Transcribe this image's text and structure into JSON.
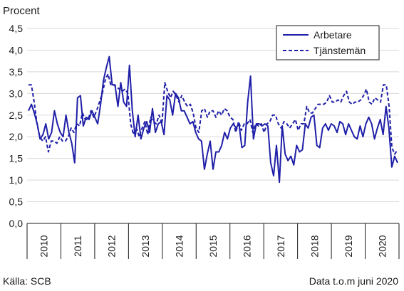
{
  "chart_data": {
    "type": "line",
    "title": "",
    "ylabel": "Procent",
    "xlabel": "",
    "ylim": [
      0,
      4.5
    ],
    "yticks": [
      "0,0",
      "0,5",
      "1,0",
      "1,5",
      "2,0",
      "2,5",
      "3,0",
      "3,5",
      "4,0",
      "4,5"
    ],
    "years": [
      "2010",
      "2011",
      "2012",
      "2013",
      "2014",
      "2015",
      "2016",
      "2017",
      "2018",
      "2019",
      "2020"
    ],
    "x_start": "2010-01",
    "x_end": "2020-06",
    "grid": "horizontal",
    "legend_position": "top-right",
    "series": [
      {
        "name": "Arbetare",
        "style": "solid",
        "color": "#1f1fa8",
        "values": [
          2.6,
          2.75,
          2.55,
          2.3,
          1.95,
          2.05,
          2.3,
          1.95,
          2.1,
          2.6,
          2.3,
          2.1,
          2.0,
          2.5,
          2.1,
          1.85,
          1.4,
          2.9,
          2.95,
          2.25,
          2.45,
          2.4,
          2.6,
          2.45,
          2.3,
          2.75,
          3.3,
          3.6,
          3.85,
          3.2,
          3.2,
          2.7,
          3.25,
          2.8,
          2.7,
          3.65,
          2.6,
          2.0,
          2.5,
          1.95,
          2.2,
          2.35,
          2.1,
          2.65,
          2.1,
          2.3,
          2.35,
          2.05,
          2.95,
          2.85,
          2.5,
          3.0,
          2.9,
          2.6,
          2.6,
          2.45,
          2.3,
          2.35,
          2.1,
          1.95,
          1.9,
          1.25,
          1.6,
          1.9,
          1.25,
          1.65,
          1.65,
          1.8,
          2.1,
          1.95,
          2.2,
          2.3,
          2.2,
          2.3,
          1.75,
          1.8,
          2.8,
          3.4,
          1.95,
          2.3,
          2.3,
          2.25,
          2.3,
          2.25,
          1.4,
          1.1,
          1.8,
          0.95,
          2.25,
          1.6,
          1.45,
          1.55,
          1.35,
          1.8,
          1.65,
          1.7,
          2.3,
          2.2,
          2.45,
          2.5,
          1.8,
          1.75,
          2.2,
          2.3,
          2.15,
          2.3,
          2.25,
          2.1,
          2.35,
          2.3,
          2.05,
          2.3,
          2.15,
          2.0,
          1.95,
          2.25,
          2.0,
          2.3,
          2.45,
          2.3,
          1.95,
          2.2,
          2.4,
          2.05,
          2.7,
          2.2,
          1.3,
          1.55,
          1.4
        ]
      },
      {
        "name": "Tjänstemän",
        "style": "dashed",
        "color": "#1f1fa8",
        "values": [
          3.2,
          3.2,
          2.8,
          2.3,
          2.0,
          1.9,
          2.0,
          1.65,
          1.9,
          1.9,
          1.85,
          2.0,
          1.9,
          1.9,
          2.0,
          2.2,
          2.1,
          2.3,
          2.25,
          2.55,
          2.4,
          2.4,
          2.6,
          2.45,
          2.6,
          2.8,
          3.0,
          3.3,
          3.45,
          3.2,
          3.2,
          3.15,
          3.1,
          3.05,
          3.1,
          3.0,
          2.3,
          2.05,
          2.2,
          2.0,
          2.2,
          2.35,
          2.05,
          2.45,
          2.35,
          2.3,
          2.5,
          2.3,
          3.25,
          3.05,
          2.9,
          3.05,
          2.95,
          2.8,
          2.95,
          2.8,
          2.7,
          2.75,
          2.55,
          2.2,
          2.1,
          2.6,
          2.65,
          2.45,
          2.6,
          2.6,
          2.45,
          2.6,
          2.5,
          2.65,
          2.6,
          2.45,
          2.4,
          2.1,
          2.35,
          2.15,
          2.3,
          2.3,
          2.4,
          2.1,
          2.3,
          2.25,
          2.3,
          2.1,
          2.3,
          2.35,
          2.5,
          2.5,
          2.3,
          2.2,
          2.35,
          2.3,
          2.2,
          2.3,
          2.4,
          2.15,
          2.3,
          2.3,
          2.7,
          2.55,
          2.55,
          2.65,
          2.75,
          2.75,
          2.75,
          2.8,
          2.95,
          2.8,
          2.8,
          2.85,
          2.8,
          2.95,
          3.05,
          2.8,
          2.75,
          2.8,
          2.8,
          2.85,
          2.95,
          3.1,
          2.8,
          2.75,
          2.9,
          2.85,
          2.8,
          3.2,
          3.2,
          2.7,
          1.75,
          1.6,
          1.7
        ]
      }
    ]
  },
  "footer": {
    "source": "Källa: SCB",
    "note": "Data t.o.m juni 2020"
  }
}
